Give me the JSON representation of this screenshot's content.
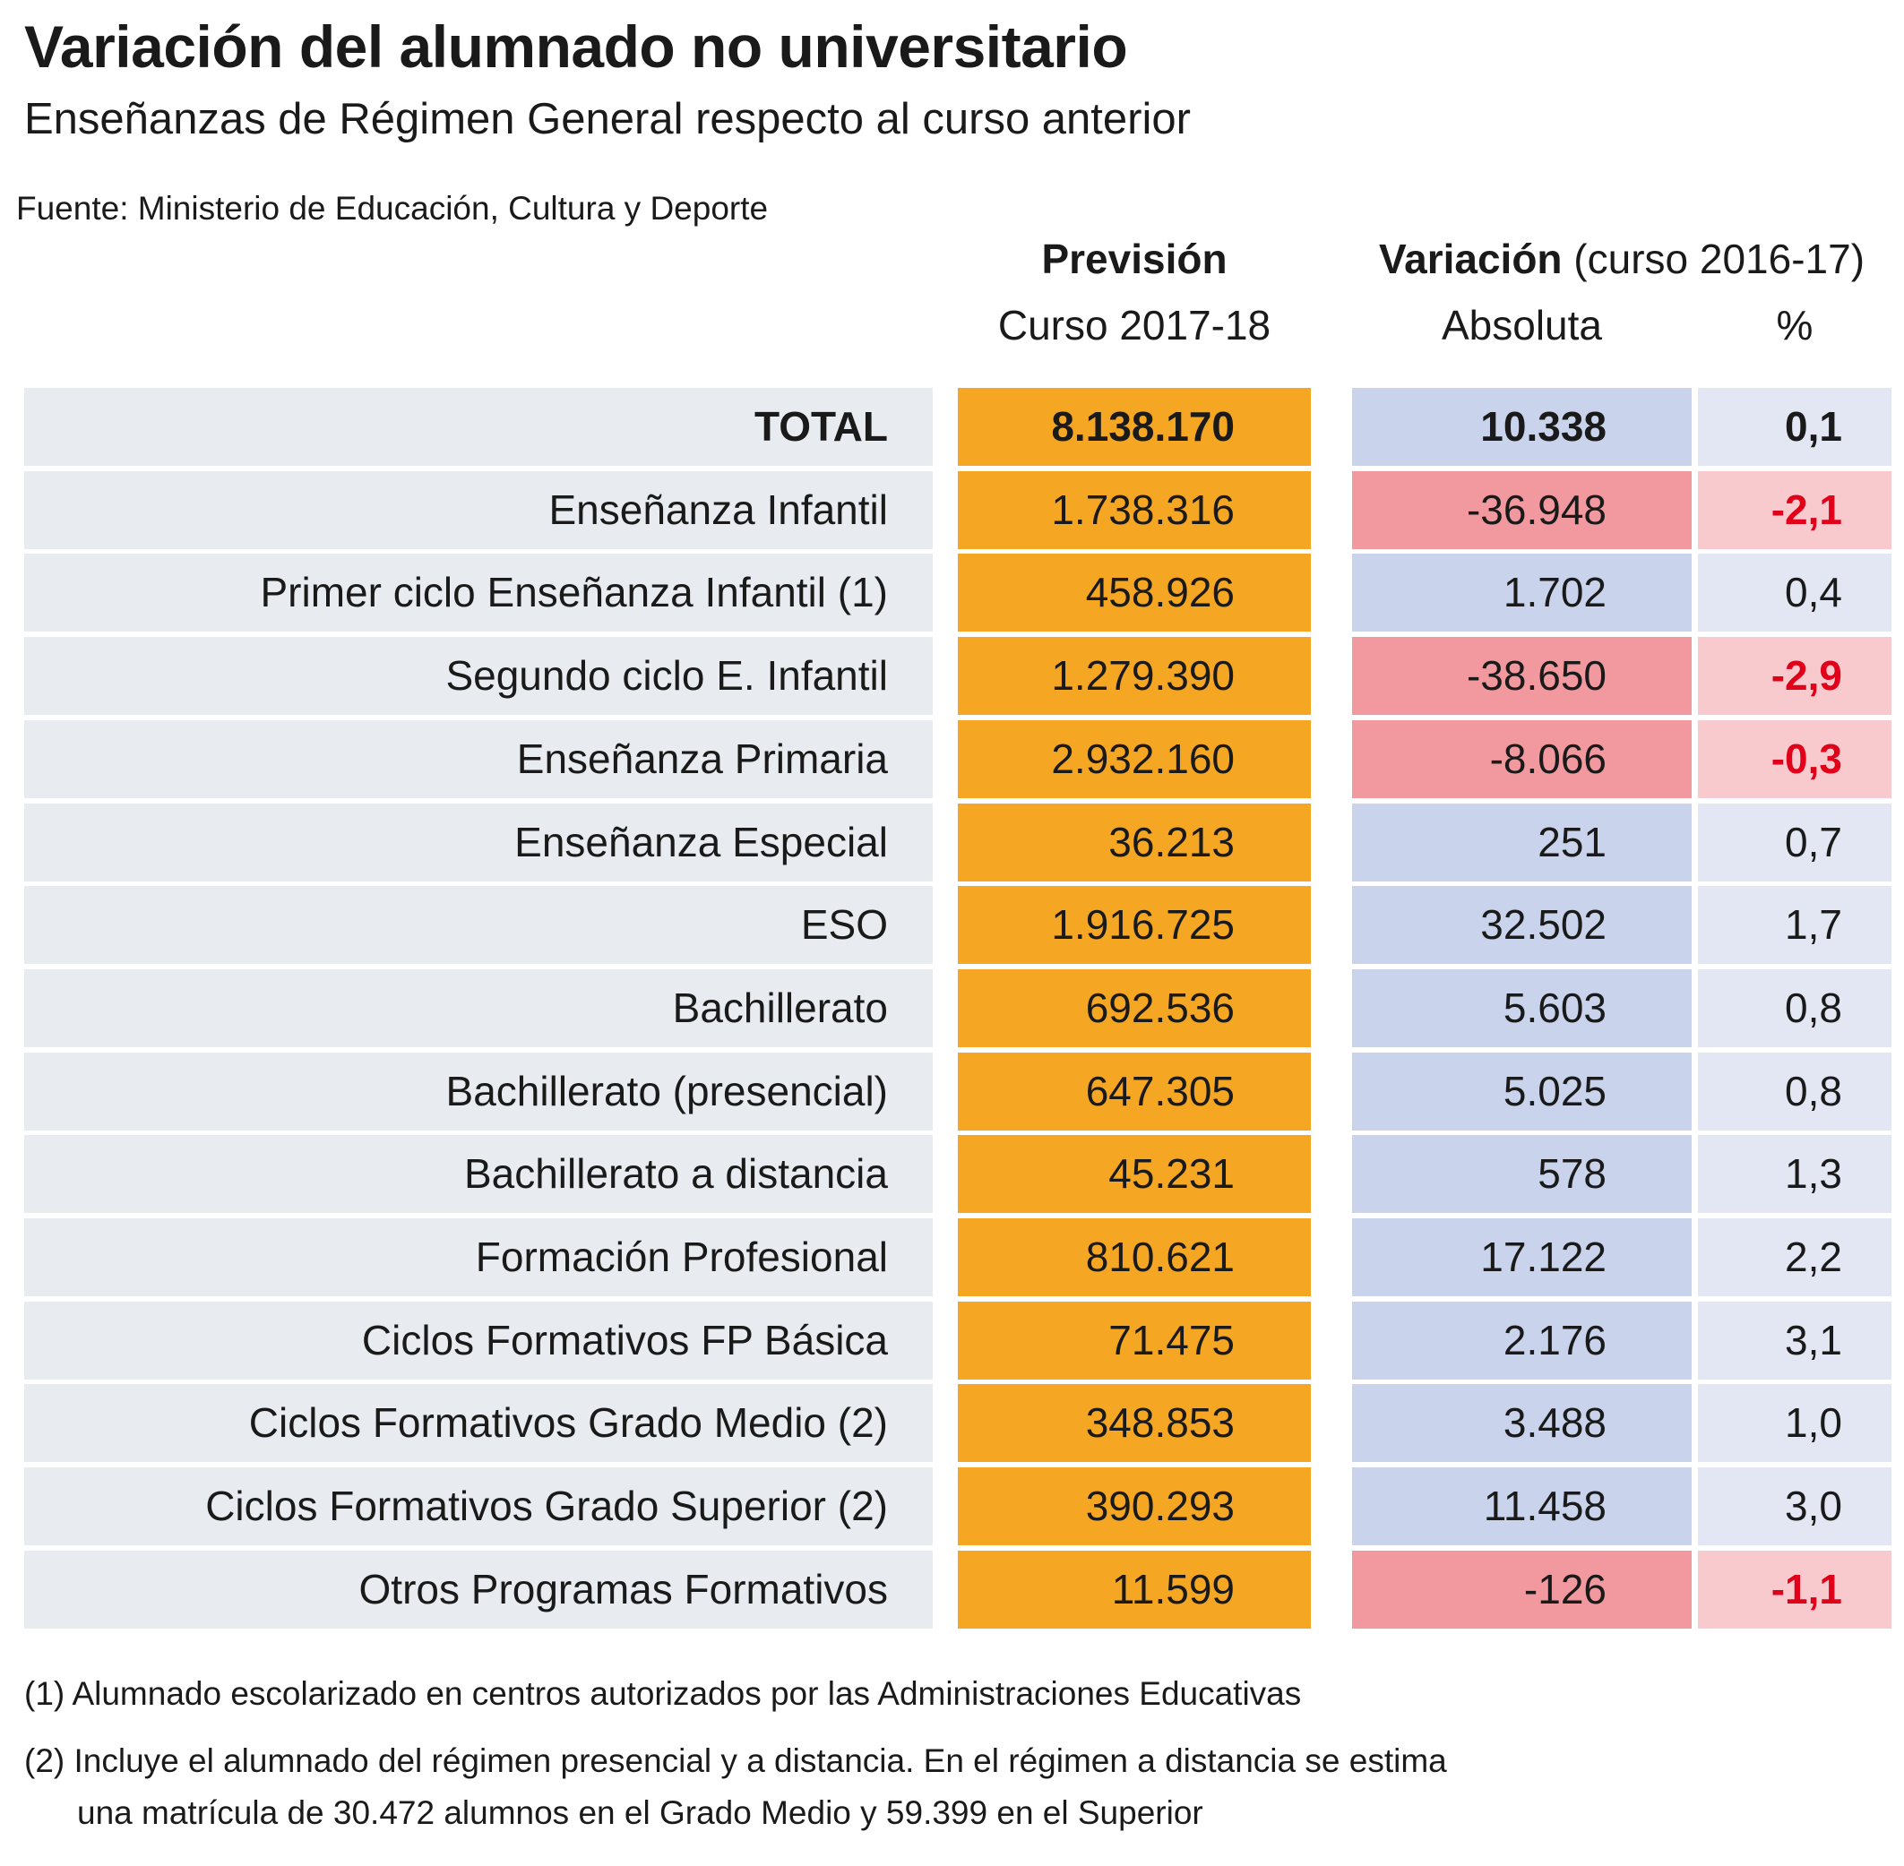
{
  "title": "Variación del alumnado no universitario",
  "subtitle": "Enseñanzas de Régimen General respecto al curso anterior",
  "source": "Fuente: Ministerio de Educación, Cultura y Deporte",
  "headers": {
    "prevision_bold": "Previsión",
    "prevision_sub": "Curso 2017-18",
    "variacion_bold": "Variación",
    "variacion_rest": " (curso 2016-17)",
    "absoluta": "Absoluta",
    "pct": "%"
  },
  "colors": {
    "prevision": "#f5a623",
    "positive_abs": "#c9d3ec",
    "positive_pct": "#e3e7f4",
    "negative_abs": "#f2999f",
    "negative_pct": "#f8cacd",
    "negative_text": "#e1001a",
    "label_bg": "#e8ebef"
  },
  "rows": [
    {
      "label": "TOTAL",
      "prevision": "8.138.170",
      "absoluta": "10.338",
      "pct": "0,1",
      "negative": false,
      "bold": true
    },
    {
      "label": "Enseñanza Infantil",
      "prevision": "1.738.316",
      "absoluta": "-36.948",
      "pct": "-2,1",
      "negative": true
    },
    {
      "label": "Primer ciclo Enseñanza Infantil (1)",
      "prevision": "458.926",
      "absoluta": "1.702",
      "pct": "0,4",
      "negative": false
    },
    {
      "label": "Segundo ciclo E. Infantil",
      "prevision": "1.279.390",
      "absoluta": "-38.650",
      "pct": "-2,9",
      "negative": true
    },
    {
      "label": "Enseñanza Primaria",
      "prevision": "2.932.160",
      "absoluta": "-8.066",
      "pct": "-0,3",
      "negative": true
    },
    {
      "label": "Enseñanza Especial",
      "prevision": "36.213",
      "absoluta": "251",
      "pct": "0,7",
      "negative": false
    },
    {
      "label": "ESO",
      "prevision": "1.916.725",
      "absoluta": "32.502",
      "pct": "1,7",
      "negative": false
    },
    {
      "label": "Bachillerato",
      "prevision": "692.536",
      "absoluta": "5.603",
      "pct": "0,8",
      "negative": false
    },
    {
      "label": "Bachillerato (presencial)",
      "prevision": "647.305",
      "absoluta": "5.025",
      "pct": "0,8",
      "negative": false
    },
    {
      "label": "Bachillerato a distancia",
      "prevision": "45.231",
      "absoluta": "578",
      "pct": "1,3",
      "negative": false
    },
    {
      "label": "Formación Profesional",
      "prevision": "810.621",
      "absoluta": "17.122",
      "pct": "2,2",
      "negative": false
    },
    {
      "label": "Ciclos Formativos FP Básica",
      "prevision": "71.475",
      "absoluta": "2.176",
      "pct": "3,1",
      "negative": false
    },
    {
      "label": "Ciclos Formativos Grado Medio (2)",
      "prevision": "348.853",
      "absoluta": "3.488",
      "pct": "1,0",
      "negative": false
    },
    {
      "label": "Ciclos Formativos Grado Superior (2)",
      "prevision": "390.293",
      "absoluta": "11.458",
      "pct": "3,0",
      "negative": false
    },
    {
      "label": "Otros Programas Formativos",
      "prevision": "11.599",
      "absoluta": "-126",
      "pct": "-1,1",
      "negative": true
    }
  ],
  "notes": [
    "(1) Alumnado escolarizado en centros autorizados por las Administraciones Educativas",
    "(2) Incluye el alumnado del régimen presencial y a distancia. En el régimen a distancia se estima",
    "una matrícula de 30.472 alumnos en el Grado Medio y 59.399 en el Superior"
  ]
}
